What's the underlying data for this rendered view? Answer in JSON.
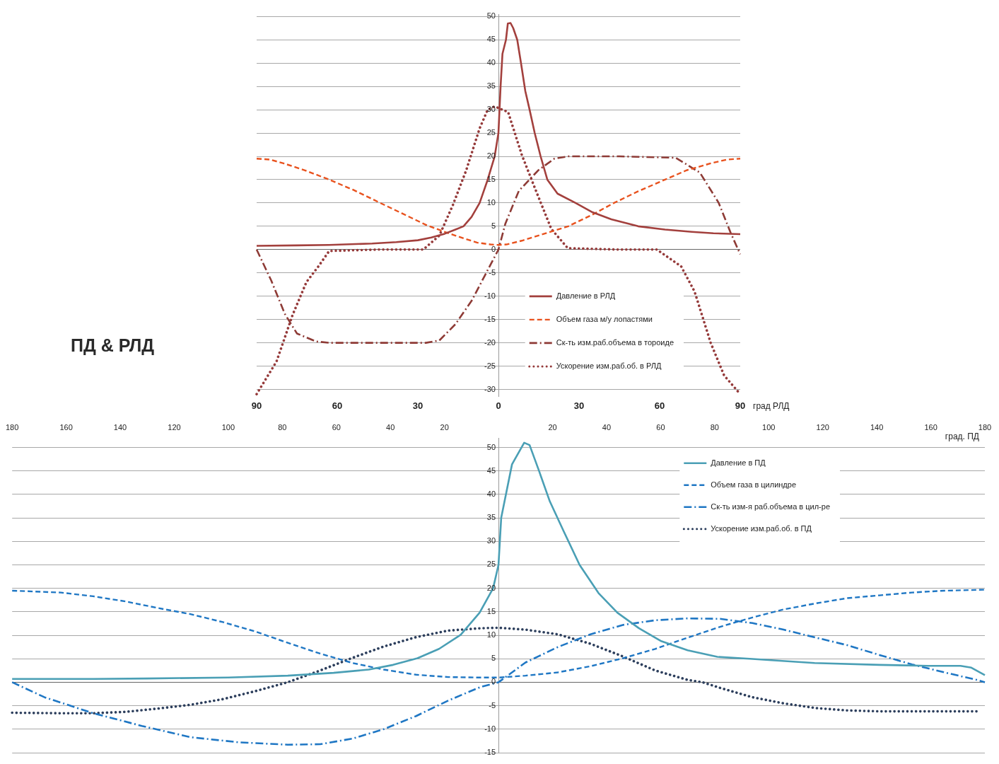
{
  "chart_data": [
    {
      "type": "line",
      "title": "ПД & РЛД",
      "xlabel": "град РЛД",
      "xlim": [
        -90,
        90
      ],
      "xticks": [
        {
          "value": -90,
          "label": "90"
        },
        {
          "value": -60,
          "label": "60"
        },
        {
          "value": -30,
          "label": "30"
        },
        0,
        30,
        60,
        90
      ],
      "ylim": [
        -31.5,
        50.5
      ],
      "yticks": [
        -30,
        -25,
        -20,
        -15,
        -10,
        -5,
        0,
        5,
        10,
        15,
        20,
        25,
        30,
        35,
        40,
        45,
        50
      ],
      "grid": "y",
      "legend": "bottom right",
      "marker": "none",
      "series": [
        {
          "name": "Давление в РЛД",
          "color": "#a3403d",
          "line_style": "solid",
          "x": [
            -90,
            -75,
            -63,
            -47,
            -38,
            -30,
            -25,
            -20,
            -16,
            -13,
            -10,
            -7,
            -4,
            -1.4,
            0,
            0.8,
            1.5,
            2.8,
            3.5,
            4.5,
            5.5,
            7,
            8.4,
            10,
            11.6,
            13.5,
            15.7,
            18.2,
            22,
            28.7,
            35,
            42,
            52,
            62,
            72,
            80,
            90
          ],
          "values": [
            0.8,
            0.9,
            1.0,
            1.3,
            1.6,
            2,
            2.6,
            3.4,
            4.3,
            5,
            7,
            10,
            15,
            20,
            25,
            35,
            42,
            45,
            48.5,
            48.6,
            47.5,
            45,
            40,
            34,
            30,
            25,
            20,
            15,
            12,
            10,
            8,
            6.5,
            5,
            4.3,
            3.8,
            3.5,
            3.3
          ]
        },
        {
          "name": "Объем газа м/у лопастями",
          "color": "#e8521e",
          "line_style": "dashed",
          "x": [
            -90,
            -85,
            -80,
            -72,
            -63,
            -54,
            -44,
            -36,
            -27,
            -20,
            -16,
            -8,
            -3,
            0,
            3,
            8.7,
            16,
            26,
            35,
            43,
            52,
            62,
            70,
            79,
            85,
            90
          ],
          "values": [
            19.5,
            19.3,
            18.5,
            17,
            15,
            12.8,
            10,
            7.8,
            5.3,
            3.8,
            3,
            1.5,
            1.1,
            1,
            1.1,
            1.9,
            3.2,
            5,
            7.5,
            10,
            12.5,
            15,
            17,
            18.5,
            19.3,
            19.5
          ]
        },
        {
          "name": "Ск-ть изм.раб.объема в тороиде",
          "color": "#8e3b36",
          "line_style": "dashdot",
          "x": [
            -90,
            -84.6,
            -79.5,
            -75,
            -68,
            -63,
            -45,
            -27,
            -22,
            -16,
            -10,
            -5,
            0,
            2.6,
            7.6,
            14.8,
            20.8,
            26,
            45,
            66,
            75,
            82,
            86.5,
            90
          ],
          "values": [
            0,
            -6.6,
            -13.8,
            -18,
            -19.7,
            -20,
            -20,
            -20,
            -19.5,
            -16,
            -11,
            -5.5,
            0,
            5.6,
            12.6,
            17,
            19.5,
            20,
            20,
            19.7,
            16.5,
            10,
            3.5,
            -1
          ]
        },
        {
          "name": "Ускорение изм.раб.об. в РЛД",
          "color": "#953a3a",
          "line_style": "dotted",
          "x": [
            -90,
            -82.6,
            -76.6,
            -71.5,
            -67,
            -63,
            -45,
            -28,
            -22,
            -17,
            -12,
            -7,
            -4,
            -1.4,
            3.6,
            8.7,
            13.7,
            19.7,
            25.8,
            45,
            59,
            68,
            73,
            79,
            84,
            90
          ],
          "values": [
            -31,
            -24,
            -14,
            -7,
            -3.6,
            -0.3,
            0,
            0,
            3,
            9.5,
            17,
            26,
            30,
            30.7,
            29.5,
            20.3,
            13,
            4.4,
            0.3,
            0,
            0,
            -3.6,
            -9,
            -20,
            -27,
            -31
          ]
        }
      ]
    },
    {
      "type": "line",
      "xlabel": "град. ПД",
      "xlim": [
        -180,
        180
      ],
      "xticks": [
        {
          "value": -180,
          "label": "180"
        },
        {
          "value": -160,
          "label": "160"
        },
        {
          "value": -140,
          "label": "140"
        },
        {
          "value": -120,
          "label": "120"
        },
        {
          "value": -100,
          "label": "100"
        },
        {
          "value": -80,
          "label": "80"
        },
        {
          "value": -60,
          "label": "60"
        },
        {
          "value": -40,
          "label": "40"
        },
        {
          "value": -20,
          "label": "20"
        },
        {
          "value": 0,
          "label": null
        },
        20,
        40,
        60,
        80,
        100,
        120,
        140,
        160,
        180
      ],
      "ylim": [
        -15,
        52
      ],
      "yticks": [
        -15,
        -10,
        -5,
        0,
        5,
        10,
        15,
        20,
        25,
        30,
        35,
        40,
        45,
        50
      ],
      "grid": "y",
      "legend": "top right",
      "marker": "none",
      "series": [
        {
          "name": "Давление в ПД",
          "color": "#4a9fb5",
          "line_style": "solid",
          "x": [
            -180,
            -150,
            -130,
            -100,
            -78,
            -61,
            -48,
            -39,
            -30,
            -22,
            -14,
            -7,
            -2,
            0,
            1,
            5,
            9.5,
            11.5,
            15,
            19,
            24,
            30,
            37,
            44,
            52,
            60,
            70,
            81,
            93,
            117,
            141,
            159,
            171,
            175,
            180
          ],
          "values": [
            0.7,
            0.7,
            0.8,
            1.0,
            1.4,
            2,
            2.7,
            3.7,
            5.1,
            7.1,
            10.1,
            14.8,
            20,
            25,
            35,
            46.4,
            51,
            50.5,
            45,
            38.5,
            32.3,
            25,
            19,
            14.8,
            11.5,
            8.8,
            6.8,
            5.4,
            5,
            4.1,
            3.7,
            3.5,
            3.5,
            3.1,
            1.5
          ]
        },
        {
          "name": "Объем газа в цилиндре",
          "color": "#1f77c4",
          "line_style": "dashed",
          "x": [
            -180,
            -162,
            -150,
            -138,
            -126,
            -114,
            -102,
            -90,
            -78,
            -66,
            -54,
            -42.5,
            -30.5,
            -18.6,
            -6.6,
            0,
            10,
            22,
            34,
            46,
            58,
            70,
            82,
            94,
            105.5,
            117.5,
            129,
            141,
            153,
            165,
            180
          ],
          "values": [
            19.5,
            19.1,
            18.3,
            17.2,
            15.8,
            14.5,
            12.8,
            10.8,
            8.4,
            6.1,
            4.1,
            2.7,
            1.6,
            1.1,
            1,
            1,
            1.4,
            2.1,
            3.4,
            5.1,
            7.1,
            9.5,
            11.8,
            13.8,
            15.5,
            16.8,
            17.9,
            18.5,
            19.1,
            19.5,
            19.7
          ]
        },
        {
          "name": "Ск-ть изм-я раб.объема в цил-ре",
          "color": "#1f77c4",
          "line_style": "dashdot",
          "x": [
            -180,
            -168,
            -150,
            -132,
            -114,
            -96,
            -78,
            -66,
            -54,
            -42.5,
            -30.5,
            -18.6,
            -6.6,
            0,
            10,
            22,
            34,
            46,
            58,
            70,
            82,
            94,
            105.5,
            117.5,
            129,
            141,
            153,
            165,
            177,
            180
          ],
          "values": [
            0,
            -3.2,
            -6.6,
            -9.3,
            -11.7,
            -12.8,
            -13.3,
            -13.2,
            -12,
            -10,
            -7.2,
            -3.9,
            -1,
            0,
            4.2,
            7.5,
            10.2,
            12.2,
            13.2,
            13.6,
            13.5,
            12.6,
            11.2,
            9.5,
            7.9,
            5.8,
            3.8,
            2.1,
            0.5,
            0
          ]
        },
        {
          "name": "Ускорение изм.раб.об. в ПД",
          "color": "#2c3e5c",
          "line_style": "dotted",
          "x": [
            -180,
            -162,
            -150,
            -138,
            -126,
            -114,
            -102,
            -90,
            -78,
            -66,
            -54,
            -42.5,
            -30.5,
            -18.6,
            -6.6,
            0,
            10,
            22,
            34,
            46,
            58,
            70,
            75.5,
            82,
            94,
            105.5,
            117.5,
            129,
            141,
            153,
            165,
            177
          ],
          "values": [
            -6.5,
            -6.6,
            -6.6,
            -6.3,
            -5.6,
            -4.8,
            -3.6,
            -1.9,
            0,
            2.5,
            5.2,
            7.6,
            9.6,
            11,
            11.5,
            11.6,
            11.2,
            10.2,
            8.2,
            5.5,
            2.5,
            0.5,
            0,
            -1.2,
            -3.2,
            -4.5,
            -5.5,
            -6,
            -6.2,
            -6.2,
            -6.2,
            -6.2
          ]
        }
      ]
    }
  ]
}
